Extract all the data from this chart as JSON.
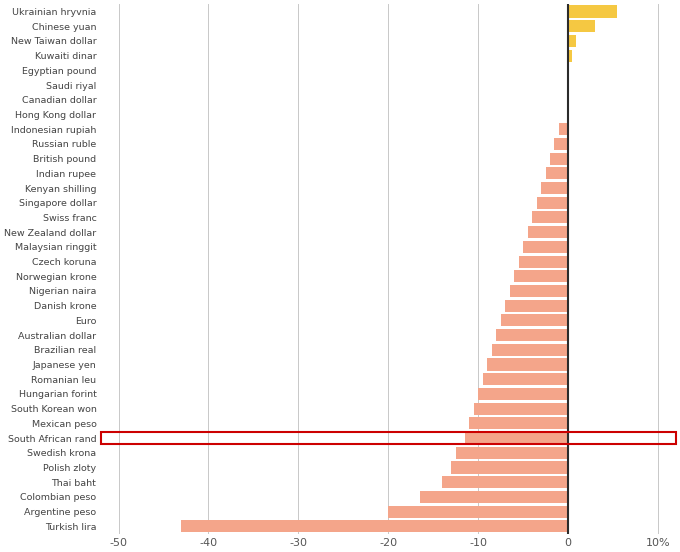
{
  "currencies": [
    "Ukrainian hryvnia",
    "Chinese yuan",
    "New Taiwan dollar",
    "Kuwaiti dinar",
    "Egyptian pound",
    "Saudi riyal",
    "Canadian dollar",
    "Hong Kong dollar",
    "Indonesian rupiah",
    "Russian ruble",
    "British pound",
    "Indian rupee",
    "Kenyan shilling",
    "Singapore dollar",
    "Swiss franc",
    "New Zealand dollar",
    "Malaysian ringgit",
    "Czech koruna",
    "Norwegian krone",
    "Nigerian naira",
    "Danish krone",
    "Euro",
    "Australian dollar",
    "Brazilian real",
    "Japanese yen",
    "Romanian leu",
    "Hungarian forint",
    "South Korean won",
    "Mexican peso",
    "South African rand",
    "Swedish krona",
    "Polish zloty",
    "Thai baht",
    "Colombian peso",
    "Argentine peso",
    "Turkish lira"
  ],
  "values": [
    5.5,
    3.0,
    0.9,
    0.4,
    0.0,
    0.0,
    0.0,
    0.0,
    -1.0,
    -1.5,
    -2.0,
    -2.5,
    -3.0,
    -3.5,
    -4.0,
    -4.5,
    -5.0,
    -5.5,
    -6.0,
    -6.5,
    -7.0,
    -7.5,
    -8.0,
    -8.5,
    -9.0,
    -9.5,
    -10.0,
    -10.5,
    -11.0,
    -11.5,
    -12.5,
    -13.0,
    -14.0,
    -16.5,
    -20.0,
    -43.0
  ],
  "highlight_index": 29,
  "positive_color": "#F5C842",
  "negative_color": "#F4A58A",
  "highlight_border_color": "#CC0000",
  "zero_line_color": "#2b2b2b",
  "grid_color": "#c8c8c8",
  "xlim": [
    -52,
    12
  ],
  "xticks": [
    -50,
    -40,
    -30,
    -20,
    -10,
    0,
    10
  ]
}
